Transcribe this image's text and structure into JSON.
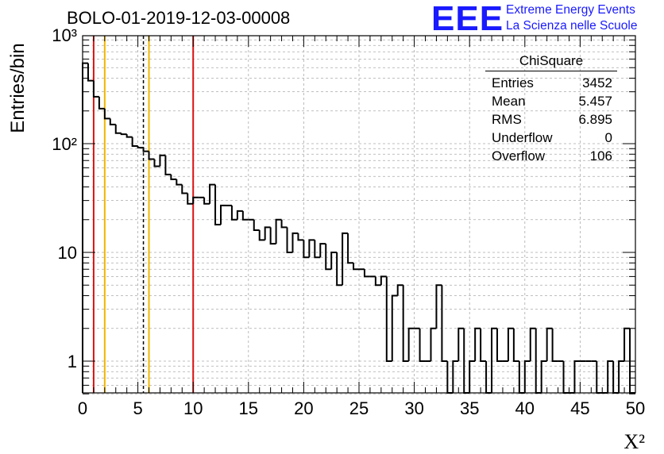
{
  "title": "BOLO-01-2019-12-03-00008",
  "logo": {
    "text": "EEE",
    "line1": "Extreme Energy Events",
    "line2": "La Scienza nelle Scuole"
  },
  "stats": {
    "name": "ChiSquare",
    "rows": [
      {
        "label": "Entries",
        "value": "3452"
      },
      {
        "label": "Mean",
        "value": "5.457"
      },
      {
        "label": "RMS",
        "value": "6.895"
      },
      {
        "label": "Underflow",
        "value": "0"
      },
      {
        "label": "Overflow",
        "value": "106"
      }
    ]
  },
  "chart_data": {
    "type": "histogram",
    "title": "BOLO-01-2019-12-03-00008",
    "xlabel": "X²",
    "ylabel": "Entries/bin",
    "xlim": [
      0,
      50
    ],
    "ylim": [
      0.5,
      1000
    ],
    "yscale": "log",
    "bin_width": 0.5,
    "grid": true,
    "x_ticks": [
      "0",
      "5",
      "10",
      "15",
      "20",
      "25",
      "30",
      "35",
      "40",
      "45",
      "50"
    ],
    "y_ticks": [
      "1",
      "10",
      "10²",
      "10³"
    ],
    "bin_centers": [
      0.25,
      0.75,
      1.25,
      1.75,
      2.25,
      2.75,
      3.25,
      3.75,
      4.25,
      4.75,
      5.25,
      5.75,
      6.25,
      6.75,
      7.25,
      7.75,
      8.25,
      8.75,
      9.25,
      9.75,
      10.25,
      10.75,
      11.25,
      11.75,
      12.25,
      12.75,
      13.25,
      13.75,
      14.25,
      14.75,
      15.25,
      15.75,
      16.25,
      16.75,
      17.25,
      17.75,
      18.25,
      18.75,
      19.25,
      19.75,
      20.25,
      20.75,
      21.25,
      21.75,
      22.25,
      22.75,
      23.25,
      23.75,
      24.25,
      24.75,
      25.25,
      25.75,
      26.25,
      26.75,
      27.25,
      27.75,
      28.25,
      28.75,
      29.25,
      29.75,
      30.25,
      30.75,
      31.25,
      31.75,
      32.25,
      32.75,
      33.25,
      33.75,
      34.25,
      34.75,
      35.25,
      35.75,
      36.25,
      36.75,
      37.25,
      37.75,
      38.25,
      38.75,
      39.25,
      39.75,
      40.25,
      40.75,
      41.25,
      41.75,
      42.25,
      42.75,
      43.25,
      43.75,
      44.25,
      44.75,
      45.25,
      45.75,
      46.25,
      46.75,
      47.25,
      47.75,
      48.25,
      48.75,
      49.25,
      49.75
    ],
    "counts": [
      550,
      380,
      270,
      210,
      170,
      150,
      125,
      122,
      115,
      95,
      92,
      85,
      72,
      62,
      78,
      52,
      47,
      42,
      35,
      28,
      32,
      32,
      28,
      42,
      18,
      27,
      27,
      20,
      24,
      20,
      20,
      16,
      13,
      17,
      12,
      20,
      17,
      10,
      15,
      13,
      9,
      13,
      9,
      12,
      7,
      10,
      5,
      15,
      8,
      7,
      7,
      6,
      6,
      5,
      6,
      1,
      4,
      5,
      1,
      2,
      2,
      1,
      1,
      2,
      5,
      1,
      0,
      1,
      2,
      0,
      1,
      2,
      1,
      0,
      2,
      1,
      1,
      2,
      1,
      0,
      1,
      2,
      0,
      1,
      2,
      1,
      1,
      0,
      0,
      1,
      1,
      1,
      1,
      0,
      0,
      1,
      0,
      1,
      2,
      0
    ],
    "vertical_lines": [
      {
        "x": 1,
        "color": "#dd1111",
        "style": "solid"
      },
      {
        "x": 2,
        "color": "#f2b600",
        "style": "solid"
      },
      {
        "x": 5.5,
        "color": "#000000",
        "style": "dashed"
      },
      {
        "x": 6,
        "color": "#f2b600",
        "style": "solid"
      },
      {
        "x": 10,
        "color": "#dd1111",
        "style": "solid"
      }
    ]
  }
}
